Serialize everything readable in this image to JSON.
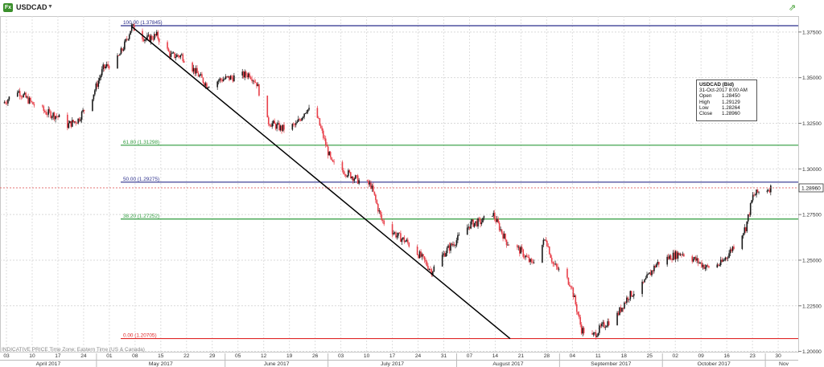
{
  "toolbar": {
    "symbol_icon": "Fx",
    "symbol": "USDCAD",
    "dropdown_icon": "caret-down-icon",
    "pin_icon": "pin-icon"
  },
  "tooltip": {
    "title": "USDCAD (Bid)",
    "datetime": "31-Oct-2017 8:00 AM",
    "rows": [
      {
        "label": "Open",
        "value": "1.28450"
      },
      {
        "label": "High",
        "value": "1.29129"
      },
      {
        "label": "Low",
        "value": "1.28264"
      },
      {
        "label": "Close",
        "value": "1.28960"
      }
    ]
  },
  "footnote": "INDICATIVE PRICE   Time Zone: Eastern Time (US & Canada)",
  "colors": {
    "up": "#1a1a1a",
    "down": "#e8404a",
    "fib_blue": "#2b2f8c",
    "fib_green": "#2e9a3c",
    "fib_red": "#e02828",
    "trend": "#000000",
    "price_line": "#e06060"
  },
  "chart_data": {
    "type": "candlestick",
    "title": "",
    "xlabel": "",
    "ylabel": "",
    "ylim": [
      1.2,
      1.38
    ],
    "y_ticks": [
      "1.37500",
      "1.35000",
      "1.32500",
      "1.30000",
      "1.27500",
      "1.25000",
      "1.22500",
      "1.20000"
    ],
    "last_price": "1.28960",
    "day_ticks": [
      "03",
      "10",
      "17",
      "24",
      "01",
      "08",
      "15",
      "22",
      "29",
      "05",
      "12",
      "19",
      "26",
      "03",
      "10",
      "17",
      "24",
      "31",
      "07",
      "14",
      "21",
      "28",
      "04",
      "11",
      "18",
      "25",
      "02",
      "09",
      "16",
      "23",
      "30"
    ],
    "months": [
      "April 2017",
      "May 2017",
      "June 2017",
      "July 2017",
      "August 2017",
      "September 2017",
      "October 2017",
      "Nov"
    ],
    "fib_levels": [
      {
        "label": "100.00 (1.37845)",
        "value": 1.37845,
        "color": "blue"
      },
      {
        "label": "61.80 (1.31298)",
        "value": 1.31298,
        "color": "green"
      },
      {
        "label": "50.00 (1.29275)",
        "value": 1.29275,
        "color": "blue"
      },
      {
        "label": "38.20 (1.27252)",
        "value": 1.27252,
        "color": "green"
      },
      {
        "label": "0.00 (1.20705)",
        "value": 1.20705,
        "color": "red"
      }
    ],
    "trend_line": {
      "from": [
        "2017-05-05",
        1.378
      ],
      "to": [
        "2017-08-19",
        1.207
      ]
    },
    "price_path": [
      [
        "2017-03-30",
        1.336
      ],
      [
        "2017-04-03",
        1.343
      ],
      [
        "2017-04-07",
        1.336
      ],
      [
        "2017-04-11",
        1.331
      ],
      [
        "2017-04-14",
        1.329
      ],
      [
        "2017-04-17",
        1.324
      ],
      [
        "2017-04-20",
        1.327
      ],
      [
        "2017-04-24",
        1.34
      ],
      [
        "2017-04-27",
        1.355
      ],
      [
        "2017-05-01",
        1.36
      ],
      [
        "2017-05-03",
        1.368
      ],
      [
        "2017-05-05",
        1.378
      ],
      [
        "2017-05-09",
        1.371
      ],
      [
        "2017-05-12",
        1.373
      ],
      [
        "2017-05-16",
        1.362
      ],
      [
        "2017-05-19",
        1.362
      ],
      [
        "2017-05-23",
        1.353
      ],
      [
        "2017-05-26",
        1.346
      ],
      [
        "2017-05-30",
        1.349
      ],
      [
        "2017-06-02",
        1.35
      ],
      [
        "2017-06-07",
        1.352
      ],
      [
        "2017-06-09",
        1.347
      ],
      [
        "2017-06-12",
        1.326
      ],
      [
        "2017-06-16",
        1.322
      ],
      [
        "2017-06-20",
        1.324
      ],
      [
        "2017-06-23",
        1.333
      ],
      [
        "2017-06-26",
        1.328
      ],
      [
        "2017-06-30",
        1.303
      ],
      [
        "2017-07-05",
        1.297
      ],
      [
        "2017-07-08",
        1.293
      ],
      [
        "2017-07-11",
        1.291
      ],
      [
        "2017-07-14",
        1.272
      ],
      [
        "2017-07-18",
        1.264
      ],
      [
        "2017-07-21",
        1.26
      ],
      [
        "2017-07-25",
        1.252
      ],
      [
        "2017-07-28",
        1.244
      ],
      [
        "2017-08-01",
        1.255
      ],
      [
        "2017-08-04",
        1.261
      ],
      [
        "2017-08-08",
        1.27
      ],
      [
        "2017-08-11",
        1.271
      ],
      [
        "2017-08-14",
        1.276
      ],
      [
        "2017-08-16",
        1.268
      ],
      [
        "2017-08-18",
        1.26
      ],
      [
        "2017-08-22",
        1.255
      ],
      [
        "2017-08-25",
        1.248
      ],
      [
        "2017-08-29",
        1.262
      ],
      [
        "2017-08-31",
        1.248
      ],
      [
        "2017-09-05",
        1.237
      ],
      [
        "2017-09-08",
        1.212
      ],
      [
        "2017-09-11",
        1.208
      ],
      [
        "2017-09-14",
        1.214
      ],
      [
        "2017-09-18",
        1.22
      ],
      [
        "2017-09-21",
        1.23
      ],
      [
        "2017-09-25",
        1.236
      ],
      [
        "2017-09-29",
        1.248
      ],
      [
        "2017-10-03",
        1.252
      ],
      [
        "2017-10-06",
        1.254
      ],
      [
        "2017-10-10",
        1.25
      ],
      [
        "2017-10-13",
        1.246
      ],
      [
        "2017-10-17",
        1.248
      ],
      [
        "2017-10-19",
        1.253
      ],
      [
        "2017-10-22",
        1.262
      ],
      [
        "2017-10-24",
        1.268
      ],
      [
        "2017-10-26",
        1.285
      ],
      [
        "2017-10-28",
        1.288
      ],
      [
        "2017-10-31",
        1.2896
      ]
    ]
  }
}
